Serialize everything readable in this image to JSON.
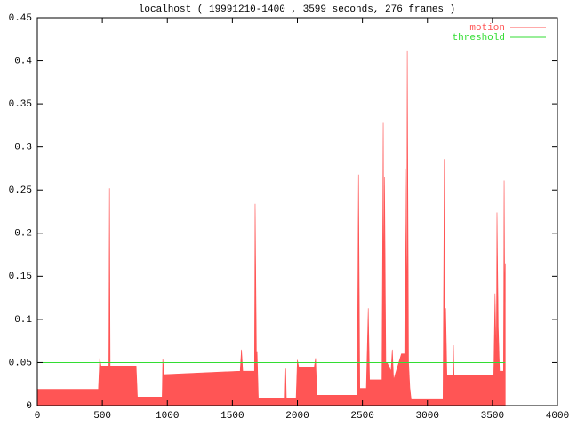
{
  "chart_data": {
    "type": "line",
    "title": "localhost ( 19991210-1400 , 3599 seconds, 276 frames )",
    "xlim": [
      0,
      4000
    ],
    "xticks": [
      0,
      500,
      1000,
      1500,
      2000,
      2500,
      3000,
      3500,
      4000
    ],
    "ylim": [
      0,
      0.45
    ],
    "yticks": [
      0,
      0.05,
      0.1,
      0.15,
      0.2,
      0.25,
      0.3,
      0.35,
      0.4,
      0.45
    ],
    "grid": false,
    "legend": "top-right",
    "series": [
      {
        "name": "motion",
        "color": "#ff5555",
        "fill": true,
        "x": [
          0,
          470,
          480,
          490,
          550,
          555,
          560,
          760,
          770,
          960,
          965,
          975,
          1560,
          1570,
          1580,
          1670,
          1675,
          1685,
          1690,
          1700,
          1905,
          1910,
          1915,
          1990,
          2000,
          2010,
          2130,
          2140,
          2150,
          2460,
          2470,
          2480,
          2530,
          2545,
          2555,
          2650,
          2660,
          2665,
          2670,
          2680,
          2690,
          2720,
          2730,
          2740,
          2800,
          2825,
          2830,
          2840,
          2845,
          2855,
          2865,
          2875,
          3120,
          3130,
          3135,
          3140,
          3150,
          3195,
          3200,
          3205,
          3510,
          3520,
          3530,
          3535,
          3545,
          3555,
          3585,
          3590,
          3595,
          3599
        ],
        "values": [
          0.019,
          0.019,
          0.055,
          0.046,
          0.046,
          0.252,
          0.046,
          0.046,
          0.01,
          0.01,
          0.054,
          0.036,
          0.04,
          0.065,
          0.04,
          0.04,
          0.234,
          0.06,
          0.062,
          0.008,
          0.008,
          0.043,
          0.008,
          0.008,
          0.053,
          0.045,
          0.045,
          0.055,
          0.012,
          0.012,
          0.268,
          0.02,
          0.02,
          0.113,
          0.03,
          0.03,
          0.328,
          0.12,
          0.265,
          0.05,
          0.05,
          0.04,
          0.065,
          0.03,
          0.06,
          0.06,
          0.275,
          0.1,
          0.412,
          0.05,
          0.02,
          0.007,
          0.007,
          0.286,
          0.05,
          0.113,
          0.035,
          0.035,
          0.07,
          0.035,
          0.035,
          0.13,
          0.05,
          0.224,
          0.09,
          0.04,
          0.04,
          0.261,
          0.12,
          0.165
        ]
      },
      {
        "name": "threshold",
        "color": "#33dd33",
        "fill": false,
        "x": [
          0,
          3599
        ],
        "values": [
          0.05,
          0.05
        ]
      }
    ]
  }
}
